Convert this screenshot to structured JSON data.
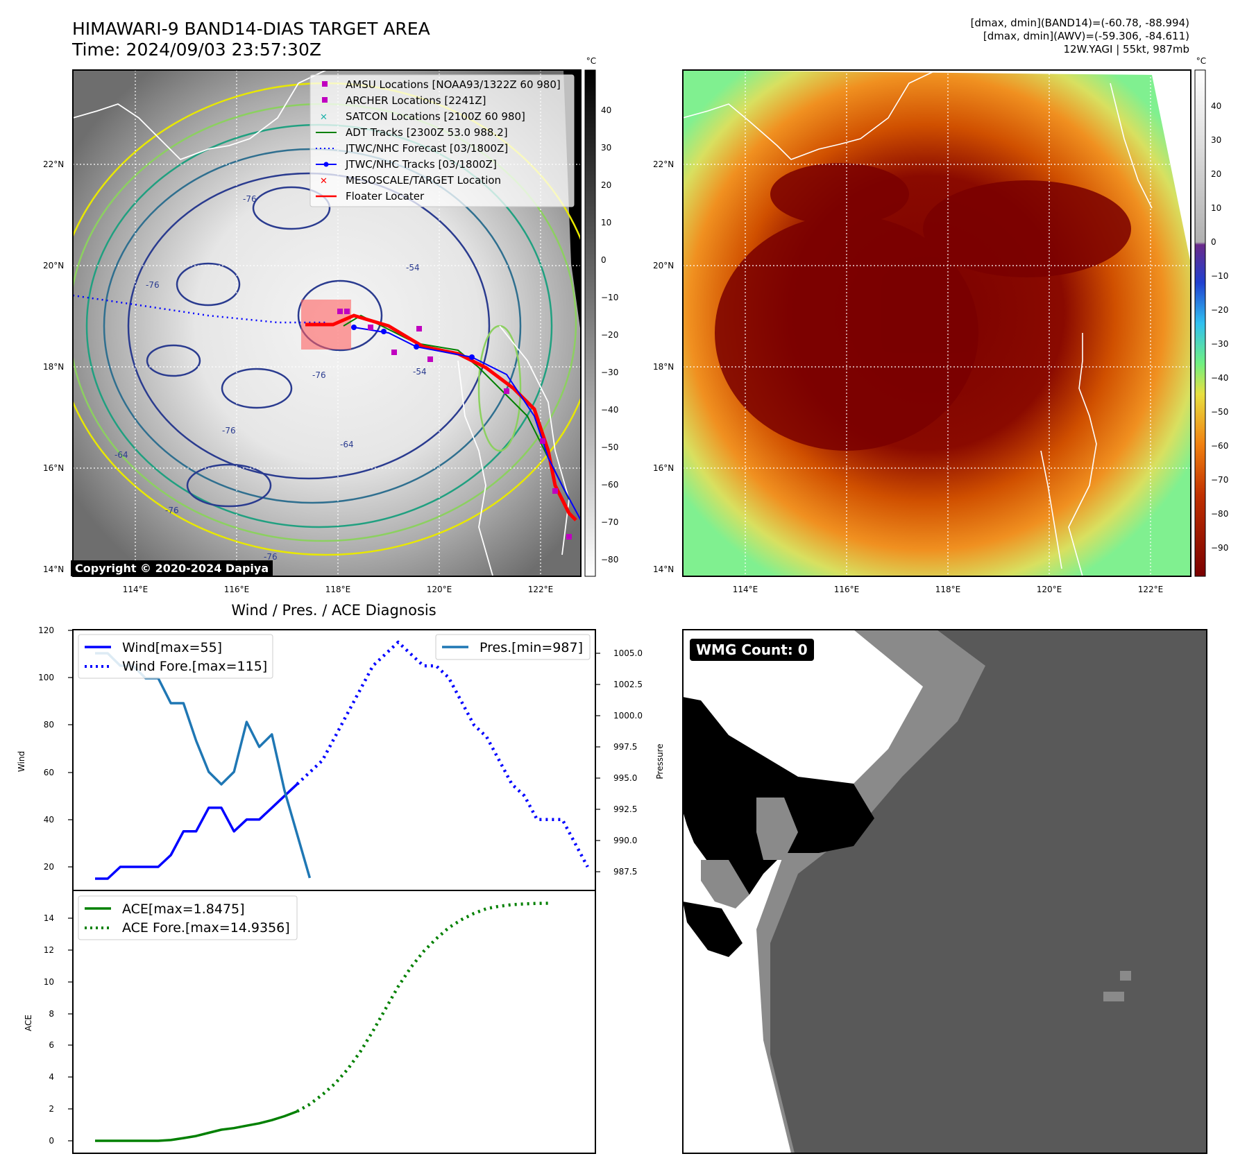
{
  "header": {
    "title_line1": "HIMAWARI-9 BAND14-DIAS TARGET AREA",
    "title_line2": "Time: 2024/09/03 23:57:30Z",
    "right_line1": "[dmax, dmin](BAND14)=(-60.78, -88.994)",
    "right_line2": "[dmax, dmin](AWV)=(-59.306, -84.611)",
    "right_line3": "12W.YAGI | 55kt, 987mb"
  },
  "map_left": {
    "lat_labels": [
      "22°N",
      "20°N",
      "18°N",
      "16°N",
      "14°N"
    ],
    "lon_labels": [
      "114°E",
      "116°E",
      "118°E",
      "120°E",
      "122°E"
    ],
    "contour_labels": [
      "-76",
      "-76",
      "-76",
      "-64",
      "-54",
      "-76",
      "-64",
      "-76",
      "-54",
      "-76"
    ],
    "copyright": "Copyright © 2020-2024 Dapiya",
    "legend": [
      {
        "label": "AMSU Locations [NOAA93/1322Z 60 980]",
        "color": "#c000c0",
        "marker": "square"
      },
      {
        "label": "ARCHER Locations [2241Z]",
        "color": "#c000c0",
        "marker": "square"
      },
      {
        "label": "SATCON Locations [2100Z 60 980]",
        "color": "#20b2aa",
        "marker": "x"
      },
      {
        "label": "ADT Tracks [2300Z 53.0 988.2]",
        "color": "#008000",
        "marker": "line"
      },
      {
        "label": "JTWC/NHC Forecast [03/1800Z]",
        "color": "#0000ff",
        "marker": "dotted"
      },
      {
        "label": "JTWC/NHC Tracks [03/1800Z]",
        "color": "#0000ff",
        "marker": "line-dot"
      },
      {
        "label": "MESOSCALE/TARGET Location",
        "color": "#ff0000",
        "marker": "x"
      },
      {
        "label": "Floater Locater",
        "color": "#ff0000",
        "marker": "line"
      }
    ],
    "colorbar_unit": "°C",
    "colorbar_ticks": [
      "40",
      "30",
      "20",
      "10",
      "0",
      "−10",
      "−20",
      "−30",
      "−40",
      "−50",
      "−60",
      "−70",
      "−80"
    ]
  },
  "map_right": {
    "lat_labels": [
      "22°N",
      "20°N",
      "18°N",
      "16°N",
      "14°N"
    ],
    "lon_labels": [
      "114°E",
      "116°E",
      "118°E",
      "120°E",
      "122°E"
    ],
    "colorbar_unit": "°C",
    "colorbar_ticks": [
      "40",
      "30",
      "20",
      "10",
      "0",
      "−10",
      "−20",
      "−30",
      "−40",
      "−50",
      "−60",
      "−70",
      "−80",
      "−90"
    ]
  },
  "diagnosis": {
    "title": "Wind / Pres. / ACE Diagnosis",
    "wind_ylabel": "Wind",
    "pres_ylabel": "Pressure",
    "ace_ylabel": "ACE",
    "wind_ticks": [
      "120",
      "100",
      "80",
      "60",
      "40",
      "20"
    ],
    "pres_ticks": [
      "1005.0",
      "1002.5",
      "1000.0",
      "997.5",
      "995.0",
      "992.5",
      "990.0",
      "987.5"
    ],
    "ace_ticks": [
      "14",
      "12",
      "10",
      "8",
      "6",
      "4",
      "2",
      "0"
    ],
    "legend_wind": "Wind[max=55]",
    "legend_wind_fore": "Wind Fore.[max=115]",
    "legend_pres": "Pres.[min=987]",
    "legend_ace": "ACE[max=1.8475]",
    "legend_ace_fore": "ACE Fore.[max=14.9356]"
  },
  "wmg": {
    "label": "WMG Count: 0"
  },
  "chart_data": [
    {
      "type": "line",
      "title": "Wind / Pres. / ACE Diagnosis",
      "ylabel": "Wind",
      "ylim": [
        10,
        120
      ],
      "y2label": "Pressure",
      "y2lim": [
        985.9,
        1006.7
      ],
      "series": [
        {
          "name": "Wind[max=55]",
          "color": "#0000ff",
          "style": "solid",
          "values": [
            15,
            15,
            20,
            20,
            20,
            20,
            25,
            35,
            35,
            45,
            45,
            35,
            40,
            40,
            45,
            50,
            55
          ]
        },
        {
          "name": "Wind Fore.[max=115]",
          "color": "#0000ff",
          "style": "dotted",
          "values": [
            55,
            60,
            65,
            75,
            85,
            95,
            105,
            110,
            115,
            110,
            105,
            105,
            100,
            90,
            80,
            75,
            65,
            55,
            50,
            40,
            40,
            40,
            30,
            20
          ]
        },
        {
          "name": "Pres.[min=987]",
          "color": "#1f77b4",
          "style": "solid",
          "axis": "right",
          "values": [
            1005.0,
            1005.0,
            1004.0,
            1004.0,
            1003.0,
            1003.0,
            1001.0,
            1001.0,
            998.0,
            995.5,
            994.5,
            995.5,
            999.5,
            997.5,
            998.5,
            994.0,
            990.5,
            987.0
          ]
        }
      ]
    },
    {
      "type": "line",
      "ylabel": "ACE",
      "ylim": [
        -0.5,
        15.2
      ],
      "series": [
        {
          "name": "ACE[max=1.8475]",
          "color": "#008000",
          "style": "solid",
          "values": [
            0,
            0,
            0,
            0,
            0,
            0,
            0.05,
            0.17,
            0.3,
            0.5,
            0.7,
            0.8,
            0.95,
            1.1,
            1.3,
            1.55,
            1.8475
          ]
        },
        {
          "name": "ACE Fore.[max=14.9356]",
          "color": "#008000",
          "style": "dotted",
          "values": [
            1.85,
            2.3,
            2.9,
            3.6,
            4.5,
            5.6,
            6.9,
            8.3,
            9.7,
            10.9,
            11.9,
            12.7,
            13.4,
            13.9,
            14.3,
            14.6,
            14.75,
            14.85,
            14.9,
            14.93,
            14.94
          ]
        }
      ]
    }
  ]
}
